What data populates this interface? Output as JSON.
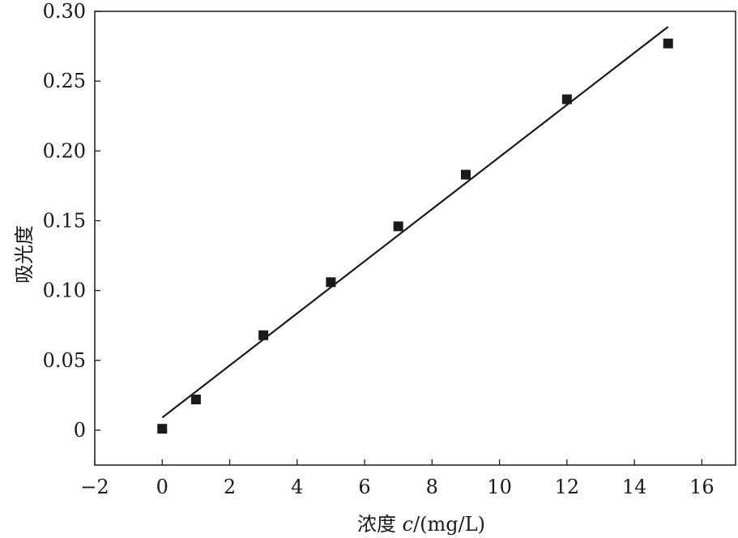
{
  "chart_data": {
    "type": "scatter",
    "title": "",
    "xlabel_prefix": "浓度 ",
    "xlabel_var": "c",
    "xlabel_suffix": "/(mg/L)",
    "ylabel": "吸光度",
    "xlim": [
      -2,
      17
    ],
    "ylim": [
      -0.025,
      0.3
    ],
    "xticks": [
      -2,
      0,
      2,
      4,
      6,
      8,
      10,
      12,
      14,
      16
    ],
    "xtick_labels": [
      "−2",
      "0",
      "2",
      "4",
      "6",
      "8",
      "10",
      "12",
      "14",
      "16"
    ],
    "yticks": [
      0,
      0.05,
      0.1,
      0.15,
      0.2,
      0.25,
      0.3
    ],
    "ytick_labels": [
      "0",
      "0.05",
      "0.10",
      "0.15",
      "0.20",
      "0.25",
      "0.30"
    ],
    "grid": false,
    "series": [
      {
        "marker": "square",
        "color": "#1a1a1a",
        "x": [
          0,
          1,
          3,
          5,
          7,
          9,
          12,
          15
        ],
        "y": [
          0.001,
          0.022,
          0.068,
          0.106,
          0.146,
          0.183,
          0.237,
          0.277
        ]
      }
    ],
    "fit_line": {
      "x": [
        0,
        15
      ],
      "y": [
        0.009,
        0.289
      ],
      "color": "#1a1a1a"
    }
  }
}
